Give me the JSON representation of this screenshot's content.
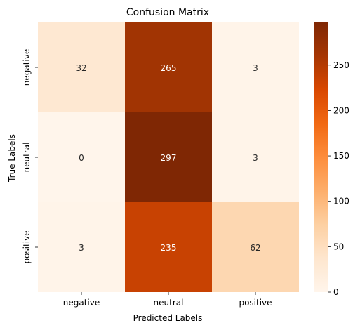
{
  "chart_data": {
    "type": "heatmap",
    "title": "Confusion Matrix",
    "xlabel": "Predicted Labels",
    "ylabel": "True Labels",
    "x_categories": [
      "negative",
      "neutral",
      "positive"
    ],
    "y_categories": [
      "negative",
      "neutral",
      "positive"
    ],
    "values": [
      [
        32,
        265,
        3
      ],
      [
        0,
        297,
        3
      ],
      [
        3,
        235,
        62
      ]
    ],
    "colorbar": {
      "min": 0,
      "max": 297,
      "ticks": [
        0,
        50,
        100,
        150,
        200,
        250
      ],
      "colormap": "Oranges"
    }
  }
}
